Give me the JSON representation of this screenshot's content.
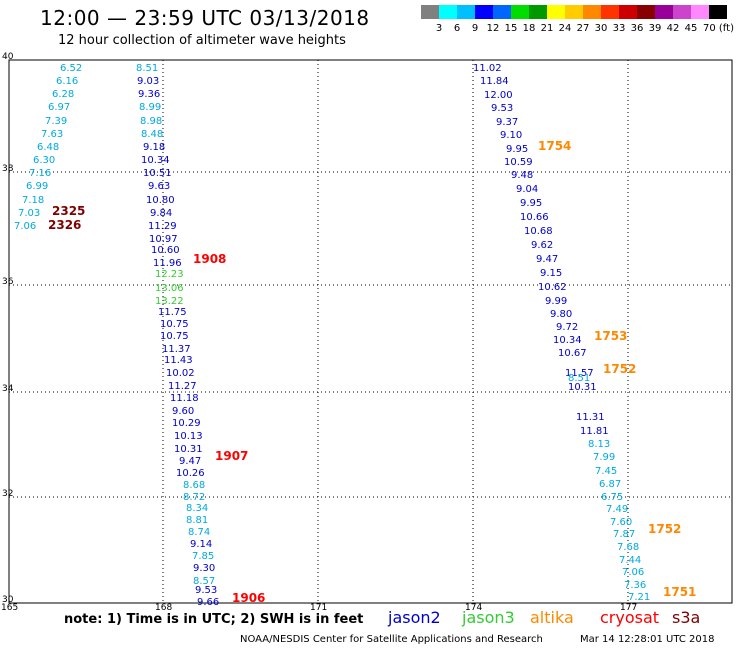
{
  "header": {
    "title": "12:00 — 23:59 UTC 03/13/2018",
    "subtitle": "12 hour collection of altimeter wave heights"
  },
  "legend": {
    "colors": [
      "#808080",
      "#00ffff",
      "#00bfff",
      "#0000ff",
      "#0066ff",
      "#00dd00",
      "#009900",
      "#ffff00",
      "#ffcc00",
      "#ff8800",
      "#ff3300",
      "#cc0000",
      "#880000",
      "#990099",
      "#cc44cc",
      "#ff88ff",
      "#000000"
    ],
    "labels": [
      "3",
      "6",
      "9",
      "12",
      "15",
      "18",
      "21",
      "24",
      "27",
      "30",
      "33",
      "36",
      "39",
      "42",
      "45",
      "70 (ft)"
    ]
  },
  "map": {
    "lon_ticks": [
      "165",
      "168",
      "171",
      "174",
      "177"
    ],
    "lat_ticks": [
      "40",
      "38",
      "36",
      "34",
      "32",
      "30"
    ],
    "track_colors": {
      "jason2": "#0000cc",
      "jason3": "#33cc33",
      "altika": "#ff8800",
      "cryosat": "#ff0000",
      "s3a": "#800000",
      "light": "#00aadd"
    },
    "points": [
      {
        "t": "6.52",
        "c": "light"
      },
      {
        "t": "6.16",
        "c": "light"
      },
      {
        "t": "6.28",
        "c": "light"
      },
      {
        "t": "6.97",
        "c": "light"
      },
      {
        "t": "7.39",
        "c": "light"
      },
      {
        "t": "7.63",
        "c": "light"
      },
      {
        "t": "6.48",
        "c": "light"
      },
      {
        "t": "6.30",
        "c": "light"
      },
      {
        "t": "7.16",
        "c": "light"
      },
      {
        "t": "6.99",
        "c": "light"
      },
      {
        "t": "7.18",
        "c": "light"
      },
      {
        "t": "7.03",
        "c": "light"
      },
      {
        "t": "7.06",
        "c": "light"
      },
      {
        "t": "8.51",
        "c": "light"
      },
      {
        "t": "9.03",
        "c": "jason2"
      },
      {
        "t": "9.36",
        "c": "jason2"
      },
      {
        "t": "8.99",
        "c": "light"
      },
      {
        "t": "8.98",
        "c": "light"
      },
      {
        "t": "8.48",
        "c": "light"
      },
      {
        "t": "9.18",
        "c": "jason2"
      },
      {
        "t": "10.34",
        "c": "jason2"
      },
      {
        "t": "10.51",
        "c": "jason2"
      },
      {
        "t": "9.63",
        "c": "jason2"
      },
      {
        "t": "10.80",
        "c": "jason2"
      },
      {
        "t": "9.84",
        "c": "jason2"
      },
      {
        "t": "11.29",
        "c": "jason2"
      },
      {
        "t": "10.97",
        "c": "jason2"
      },
      {
        "t": "10.60",
        "c": "jason2"
      },
      {
        "t": "11.96",
        "c": "jason2"
      },
      {
        "t": "12.23",
        "c": "jason3"
      },
      {
        "t": "13.06",
        "c": "jason3"
      },
      {
        "t": "13.22",
        "c": "jason3"
      },
      {
        "t": "11.75",
        "c": "jason2"
      },
      {
        "t": "10.75",
        "c": "jason2"
      },
      {
        "t": "10.75",
        "c": "jason2"
      },
      {
        "t": "11.37",
        "c": "jason2"
      },
      {
        "t": "11.43",
        "c": "jason2"
      },
      {
        "t": "10.02",
        "c": "jason2"
      },
      {
        "t": "11.27",
        "c": "jason2"
      },
      {
        "t": "11.18",
        "c": "jason2"
      },
      {
        "t": "9.60",
        "c": "jason2"
      },
      {
        "t": "10.29",
        "c": "jason2"
      },
      {
        "t": "10.13",
        "c": "jason2"
      },
      {
        "t": "10.31",
        "c": "jason2"
      },
      {
        "t": "9.47",
        "c": "jason2"
      },
      {
        "t": "10.26",
        "c": "jason2"
      },
      {
        "t": "8.68",
        "c": "light"
      },
      {
        "t": "8.72",
        "c": "light"
      },
      {
        "t": "8.34",
        "c": "light"
      },
      {
        "t": "8.81",
        "c": "light"
      },
      {
        "t": "8.74",
        "c": "light"
      },
      {
        "t": "9.14",
        "c": "jason2"
      },
      {
        "t": "7.85",
        "c": "light"
      },
      {
        "t": "9.30",
        "c": "jason2"
      },
      {
        "t": "8.57",
        "c": "light"
      },
      {
        "t": "9.53",
        "c": "jason2"
      },
      {
        "t": "9.66",
        "c": "jason2"
      },
      {
        "t": "11.02",
        "c": "jason2"
      },
      {
        "t": "11.84",
        "c": "jason2"
      },
      {
        "t": "12.00",
        "c": "jason2"
      },
      {
        "t": "9.53",
        "c": "jason2"
      },
      {
        "t": "9.37",
        "c": "jason2"
      },
      {
        "t": "9.10",
        "c": "jason2"
      },
      {
        "t": "9.95",
        "c": "jason2"
      },
      {
        "t": "10.59",
        "c": "jason2"
      },
      {
        "t": "9.48",
        "c": "jason2"
      },
      {
        "t": "9.04",
        "c": "jason2"
      },
      {
        "t": "9.95",
        "c": "jason2"
      },
      {
        "t": "10.66",
        "c": "jason2"
      },
      {
        "t": "10.68",
        "c": "jason2"
      },
      {
        "t": "9.62",
        "c": "jason2"
      },
      {
        "t": "9.47",
        "c": "jason2"
      },
      {
        "t": "9.15",
        "c": "jason2"
      },
      {
        "t": "10.62",
        "c": "jason2"
      },
      {
        "t": "9.99",
        "c": "jason2"
      },
      {
        "t": "9.80",
        "c": "jason2"
      },
      {
        "t": "9.72",
        "c": "jason2"
      },
      {
        "t": "10.34",
        "c": "jason2"
      },
      {
        "t": "10.67",
        "c": "jason2"
      },
      {
        "t": "11.57",
        "c": "jason2"
      },
      {
        "t": "8.51",
        "c": "light"
      },
      {
        "t": "10.31",
        "c": "jason2"
      },
      {
        "t": "11.31",
        "c": "jason2"
      },
      {
        "t": "11.81",
        "c": "jason2"
      },
      {
        "t": "8.13",
        "c": "light"
      },
      {
        "t": "7.99",
        "c": "light"
      },
      {
        "t": "7.45",
        "c": "light"
      },
      {
        "t": "6.87",
        "c": "light"
      },
      {
        "t": "6.75",
        "c": "light"
      },
      {
        "t": "7.49",
        "c": "light"
      },
      {
        "t": "7.60",
        "c": "light"
      },
      {
        "t": "7.87",
        "c": "light"
      },
      {
        "t": "7.68",
        "c": "light"
      },
      {
        "t": "7.44",
        "c": "light"
      },
      {
        "t": "7.06",
        "c": "light"
      },
      {
        "t": "7.36",
        "c": "light"
      },
      {
        "t": "7.21",
        "c": "light"
      }
    ],
    "times": [
      {
        "t": "2325",
        "c": "s3a"
      },
      {
        "t": "2326",
        "c": "s3a"
      },
      {
        "t": "1908",
        "c": "cryosat"
      },
      {
        "t": "1907",
        "c": "cryosat"
      },
      {
        "t": "1906",
        "c": "cryosat"
      },
      {
        "t": "1754",
        "c": "altika"
      },
      {
        "t": "1753",
        "c": "altika"
      },
      {
        "t": "1752",
        "c": "altika"
      },
      {
        "t": "1752",
        "c": "altika"
      },
      {
        "t": "1751",
        "c": "altika"
      }
    ]
  },
  "footer": {
    "note": "note: 1) Time is in UTC; 2) SWH is in feet",
    "satellites": [
      {
        "name": "jason2",
        "color": "#0000cc"
      },
      {
        "name": "jason3",
        "color": "#33cc33"
      },
      {
        "name": "altika",
        "color": "#ff8800"
      },
      {
        "name": "cryosat",
        "color": "#ff0000"
      },
      {
        "name": "s3a",
        "color": "#800000"
      }
    ],
    "credit": "NOAA/NESDIS Center for Satellite Applications and Research",
    "timestamp": "Mar 14 12:28:01 UTC 2018"
  }
}
